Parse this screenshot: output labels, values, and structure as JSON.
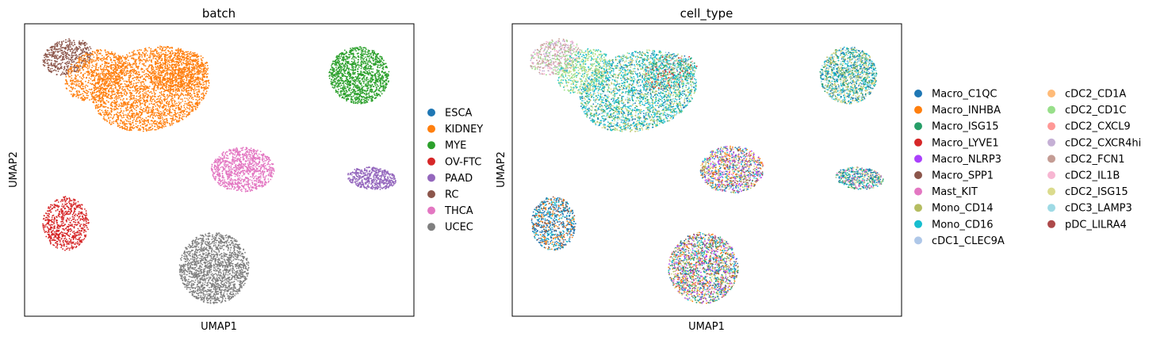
{
  "chart_data": [
    {
      "type": "scatter",
      "title": "batch",
      "xlabel": "UMAP1",
      "ylabel": "UMAP2",
      "grid": false,
      "ticks": "none",
      "legend_position": "right",
      "series": [
        {
          "name": "ESCA",
          "color": "#1f77b4"
        },
        {
          "name": "KIDNEY",
          "color": "#ff7f0e"
        },
        {
          "name": "MYE",
          "color": "#2ca02c"
        },
        {
          "name": "OV-FTC",
          "color": "#d62728"
        },
        {
          "name": "PAAD",
          "color": "#9467bd"
        },
        {
          "name": "RC",
          "color": "#8c564b"
        },
        {
          "name": "THCA",
          "color": "#e377c2"
        },
        {
          "name": "UCEC",
          "color": "#7f7f7f"
        }
      ]
    },
    {
      "type": "scatter",
      "title": "cell_type",
      "xlabel": "UMAP1",
      "ylabel": "UMAP2",
      "grid": false,
      "ticks": "none",
      "legend_position": "right",
      "legend_columns": 2,
      "series": [
        {
          "name": "Macro_C1QC",
          "color": "#1f77b4"
        },
        {
          "name": "Macro_INHBA",
          "color": "#ff7f0e"
        },
        {
          "name": "Macro_ISG15",
          "color": "#279e68"
        },
        {
          "name": "Macro_LYVE1",
          "color": "#d62728"
        },
        {
          "name": "Macro_NLRP3",
          "color": "#aa40fc"
        },
        {
          "name": "Macro_SPP1",
          "color": "#8c564b"
        },
        {
          "name": "Mast_KIT",
          "color": "#e377c2"
        },
        {
          "name": "Mono_CD14",
          "color": "#b5bd61"
        },
        {
          "name": "Mono_CD16",
          "color": "#17becf"
        },
        {
          "name": "cDC1_CLEC9A",
          "color": "#aec7e8"
        },
        {
          "name": "cDC2_CD1A",
          "color": "#ffbb78"
        },
        {
          "name": "cDC2_CD1C",
          "color": "#98df8a"
        },
        {
          "name": "cDC2_CXCL9",
          "color": "#ff9896"
        },
        {
          "name": "cDC2_CXCR4hi",
          "color": "#c5b0d5"
        },
        {
          "name": "cDC2_FCN1",
          "color": "#c49c94"
        },
        {
          "name": "cDC2_IL1B",
          "color": "#f7b6d2"
        },
        {
          "name": "cDC2_ISG15",
          "color": "#dbdb8d"
        },
        {
          "name": "cDC3_LAMP3",
          "color": "#9edae5"
        },
        {
          "name": "pDC_LILRA4",
          "color": "#ad494a"
        }
      ]
    }
  ]
}
